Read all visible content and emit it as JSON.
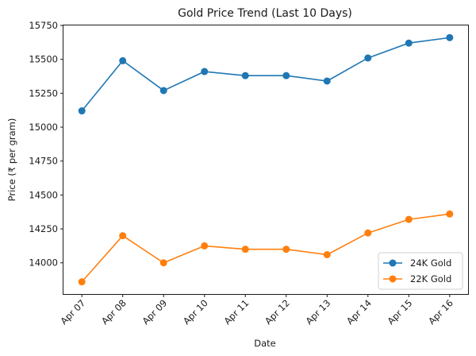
{
  "chart_data": {
    "type": "line",
    "title": "Gold Price Trend (Last 10 Days)",
    "xlabel": "Date",
    "ylabel": "Price (₹ per gram)",
    "categories": [
      "Apr 07",
      "Apr 08",
      "Apr 09",
      "Apr 10",
      "Apr 11",
      "Apr 12",
      "Apr 13",
      "Apr 14",
      "Apr 15",
      "Apr 16"
    ],
    "series": [
      {
        "name": "24K Gold",
        "color": "#1f77b4",
        "marker": "circle",
        "values": [
          15120,
          15490,
          15270,
          15410,
          15380,
          15380,
          15340,
          15510,
          15620,
          15660
        ]
      },
      {
        "name": "22K Gold",
        "color": "#ff7f0e",
        "marker": "circle",
        "values": [
          13860,
          14200,
          14000,
          14125,
          14100,
          14100,
          14060,
          14220,
          14320,
          14360
        ]
      }
    ],
    "yticks": [
      14000,
      14250,
      14500,
      14750,
      15000,
      15250,
      15500,
      15750
    ],
    "ylim": [
      13770,
      15750
    ],
    "grid": false,
    "legend_position": "lower right",
    "xtick_rotation": 45
  }
}
